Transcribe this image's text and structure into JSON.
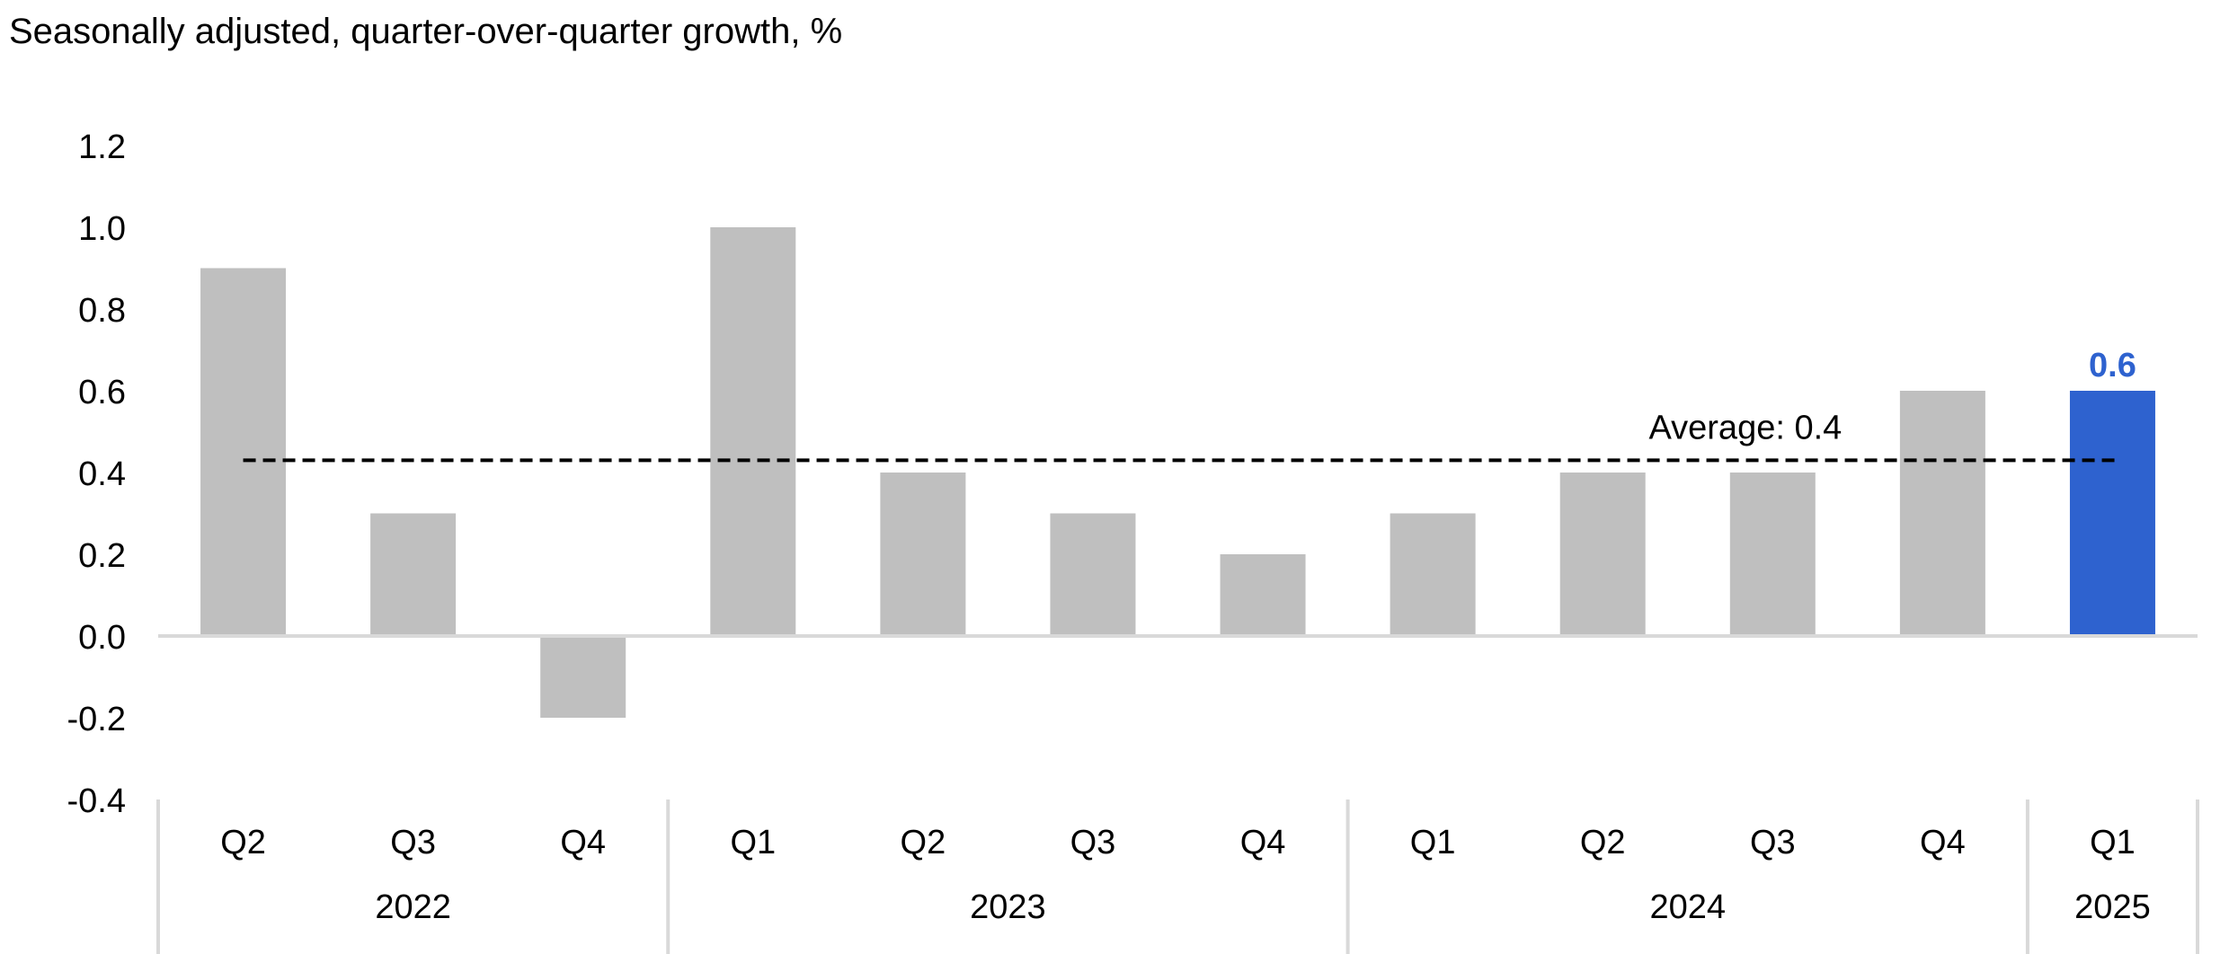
{
  "chart_data": {
    "type": "bar",
    "subtitle": "Seasonally adjusted, quarter-over-quarter growth, %",
    "categories": [
      "Q2",
      "Q3",
      "Q4",
      "Q1",
      "Q2",
      "Q3",
      "Q4",
      "Q1",
      "Q2",
      "Q3",
      "Q4",
      "Q1"
    ],
    "years": [
      {
        "label": "2022",
        "span": 3
      },
      {
        "label": "2023",
        "span": 4
      },
      {
        "label": "2024",
        "span": 4
      },
      {
        "label": "2025",
        "span": 1
      }
    ],
    "values": [
      0.9,
      0.3,
      -0.2,
      1.0,
      0.4,
      0.3,
      0.2,
      0.3,
      0.4,
      0.4,
      0.6,
      0.6
    ],
    "highlight_index": 11,
    "highlight_label": "0.6",
    "ylim": [
      -0.4,
      1.2
    ],
    "yticks": [
      "1.2",
      "1.0",
      "0.8",
      "0.6",
      "0.4",
      "0.2",
      "0.0",
      "-0.2",
      "-0.4"
    ],
    "average": {
      "value": 0.43,
      "label": "Average:  0.4"
    },
    "colors": {
      "bar": "#bfbfbf",
      "highlight": "#2e62cf",
      "axis": "#d9d9d9",
      "average_line": "#000000"
    },
    "grid": false,
    "legend": "none"
  }
}
